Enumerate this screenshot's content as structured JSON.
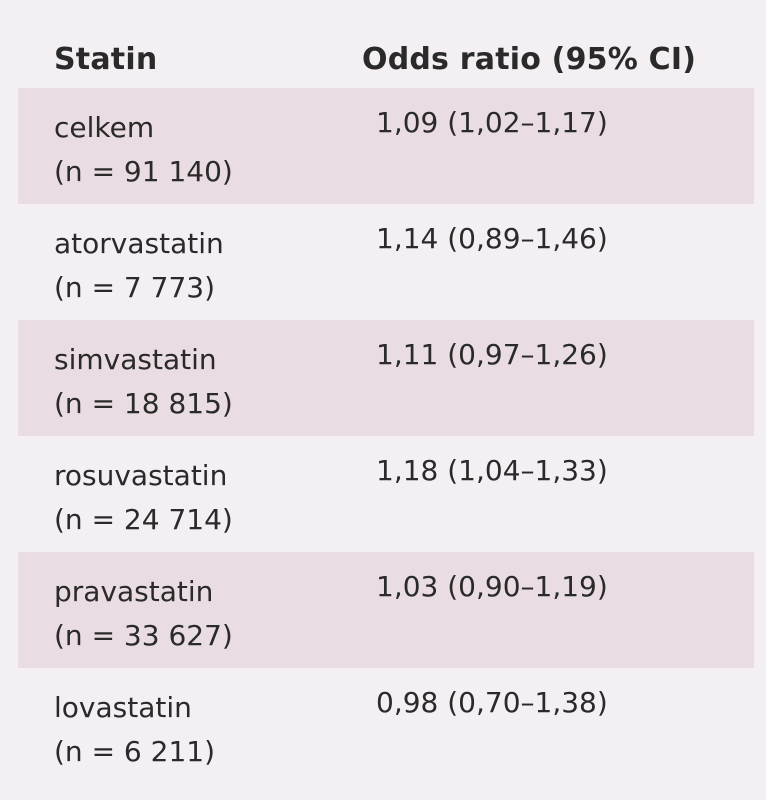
{
  "table": {
    "header": {
      "statin": "Statin",
      "odds_ratio": "Odds ratio (95% CI)"
    },
    "rows": [
      {
        "name": "celkem",
        "n": "(n = 91 140)",
        "or": "1,09 (1,02–1,17)"
      },
      {
        "name": "atorvastatin",
        "n": "(n = 7 773)",
        "or": "1,14 (0,89–1,46)"
      },
      {
        "name": "simvastatin",
        "n": "(n = 18 815)",
        "or": "1,11 (0,97–1,26)"
      },
      {
        "name": "rosuvastatin",
        "n": "(n = 24 714)",
        "or": "1,18 (1,04–1,33)"
      },
      {
        "name": "pravastatin",
        "n": "(n = 33 627)",
        "or": "1,03 (0,90–1,19)"
      },
      {
        "name": "lovastatin",
        "n": "(n = 6 211)",
        "or": "0,98 (0,70–1,38)"
      }
    ]
  }
}
